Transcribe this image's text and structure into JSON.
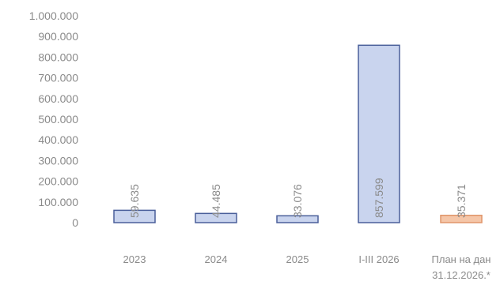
{
  "chart_data": {
    "type": "bar",
    "categories": [
      "2023",
      "2024",
      "2025",
      "I-III 2026",
      "План на дан 31.12.2026.*"
    ],
    "category_lines": [
      [
        "2023"
      ],
      [
        "2024"
      ],
      [
        "2025"
      ],
      [
        "I-III 2026"
      ],
      [
        "План на дан",
        "31.12.2026.*"
      ]
    ],
    "values": [
      59635,
      44485,
      33076,
      857599,
      35371
    ],
    "data_labels": [
      "59.635",
      "44.485",
      "33.076",
      "857.599",
      "35.371"
    ],
    "ylim": [
      0,
      1000000
    ],
    "yticks": [
      "0",
      "100.000",
      "200.000",
      "300.000",
      "400.000",
      "500.000",
      "600.000",
      "700.000",
      "800.000",
      "900.000",
      "1.000.000"
    ],
    "grid": false,
    "legend": "none",
    "colors": {
      "bar_fill": "#c9d4ee",
      "bar_stroke": "#4a5f9a",
      "highlight_fill": "#f5c6a8",
      "highlight_stroke": "#e0956a"
    },
    "highlight_index": 4
  }
}
